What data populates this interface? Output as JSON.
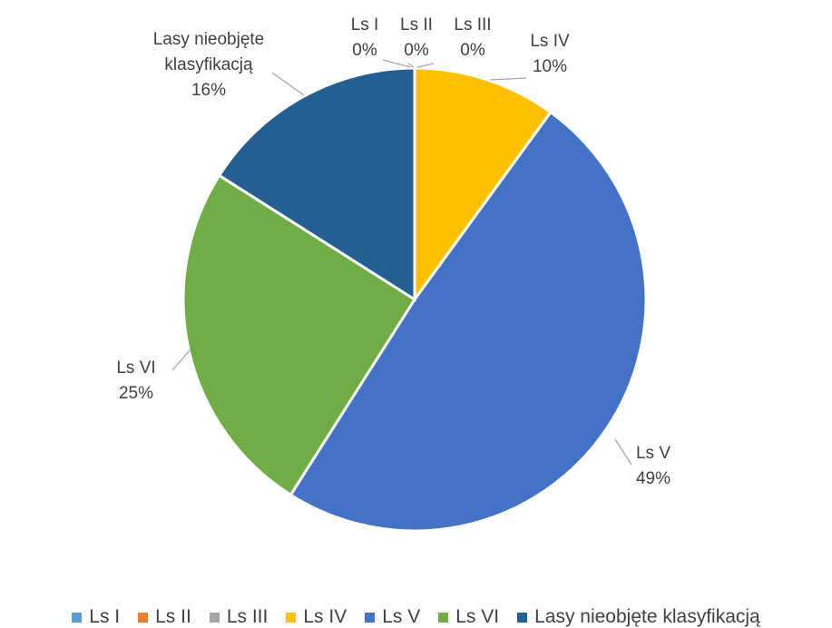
{
  "chart_data": {
    "type": "pie",
    "categories": [
      "Ls I",
      "Ls II",
      "Ls III",
      "Ls IV",
      "Ls V",
      "Ls VI",
      "Lasy nieobjęte klasyfikacją"
    ],
    "values": [
      0,
      0,
      0,
      10,
      49,
      25,
      16
    ],
    "value_labels": [
      "0%",
      "0%",
      "0%",
      "10%",
      "49%",
      "25%",
      "16%"
    ],
    "colors": [
      "#5b9bd5",
      "#ed7d31",
      "#a5a5a5",
      "#ffc000",
      "#4472c4",
      "#70ad47",
      "#255e91"
    ],
    "legend": "bottom"
  }
}
